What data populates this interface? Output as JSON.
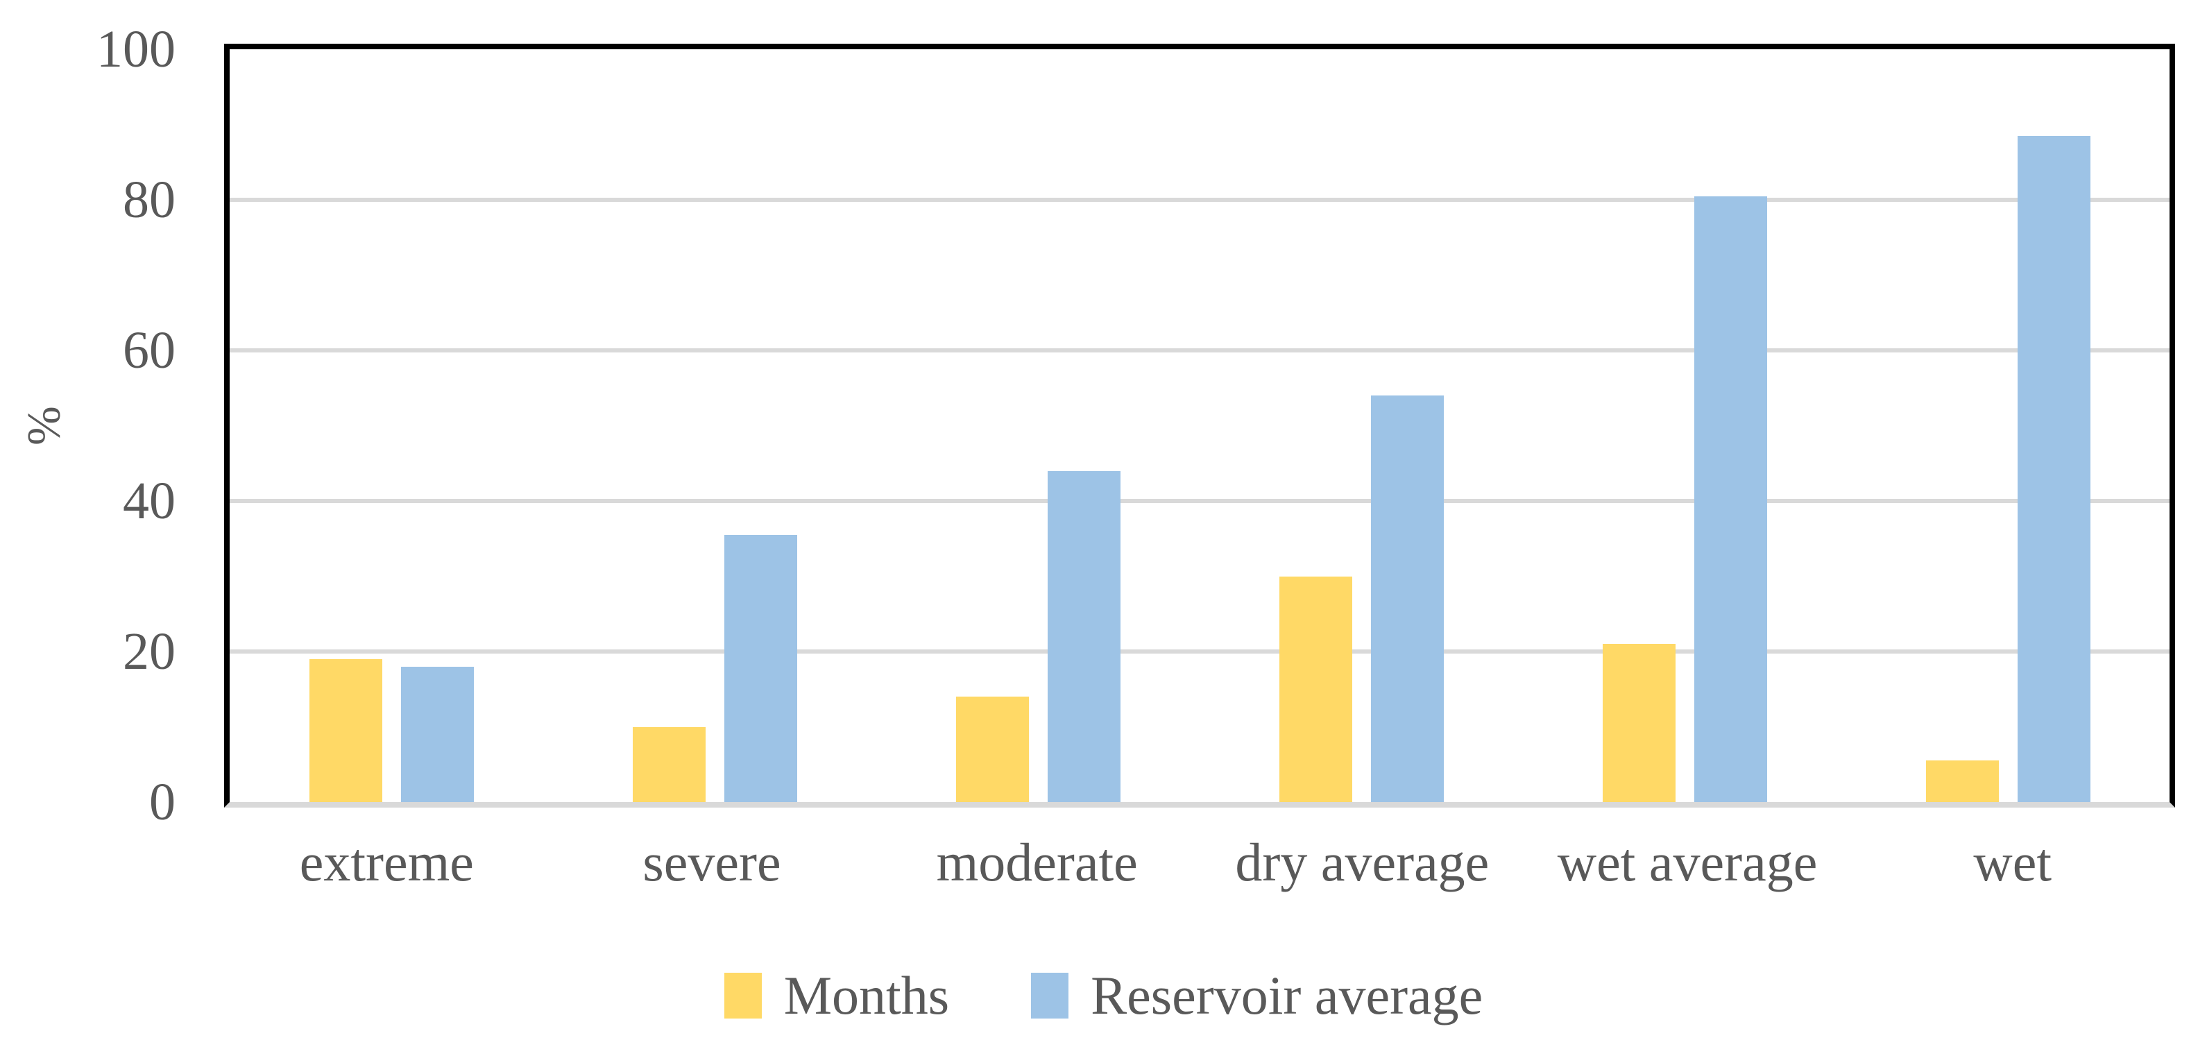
{
  "chart_data": {
    "type": "bar",
    "title": "",
    "categories": [
      "extreme",
      "severe",
      "moderate",
      "dry average",
      "wet average",
      "wet"
    ],
    "series": [
      {
        "name": "Months",
        "color": "#FFD966",
        "values": [
          19,
          10,
          14,
          30,
          21,
          5.5
        ]
      },
      {
        "name": "Reservoir average",
        "color": "#9DC3E6",
        "values": [
          18,
          35.5,
          44,
          54,
          80.5,
          88.5
        ]
      }
    ],
    "xlabel": "",
    "ylabel": "%",
    "ylim": [
      0,
      100
    ],
    "yticks": [
      0,
      20,
      40,
      60,
      80,
      100
    ],
    "grid": true,
    "legend_position": "bottom"
  },
  "colors": {
    "background": "#FFFFFF",
    "text": "#595959",
    "gridline": "#D9D9D9",
    "baseline": "#D9D9D9",
    "plot_border": "#000000",
    "months_bar": "#FFD966",
    "reservoir_bar": "#9DC3E6"
  }
}
